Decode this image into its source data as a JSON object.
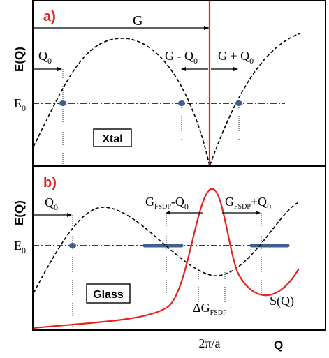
{
  "colors": {
    "frame": "#000000",
    "panel_label": "#e8231f",
    "red_curve": "#e8231f",
    "dot": "#3f5f8f",
    "band": "#3f5f8f"
  },
  "panel_a": {
    "label": "a)",
    "y_axis_label": "E(Q)",
    "level_label_base": "E",
    "level_label_sub": "0",
    "G_label": "G",
    "Q0_base": "Q",
    "Q0_sub": "0",
    "G_minus_Q0_pre": "G - Q",
    "G_minus_Q0_sub": "0",
    "G_plus_Q0_pre": "G + Q",
    "G_plus_Q0_sub": "0",
    "box_label": "Xtal"
  },
  "panel_b": {
    "label": "b)",
    "y_axis_label": "E(Q)",
    "level_label_base": "E",
    "level_label_sub": "0",
    "Q0_base": "Q",
    "Q0_sub": "0",
    "gm_g": "G",
    "gm_sub": "FSDP",
    "gm_rest": "-Q",
    "gm_sub2": "0",
    "gp_g": "G",
    "gp_sub": "FSDP",
    "gp_rest": "+Q",
    "gp_sub2": "0",
    "box_label": "Glass",
    "dg_pre": "ΔG",
    "dg_sub": "FSDP",
    "sq_label": "S(Q)",
    "x_tick_label": "2π/a",
    "x_axis_label": "Q"
  }
}
